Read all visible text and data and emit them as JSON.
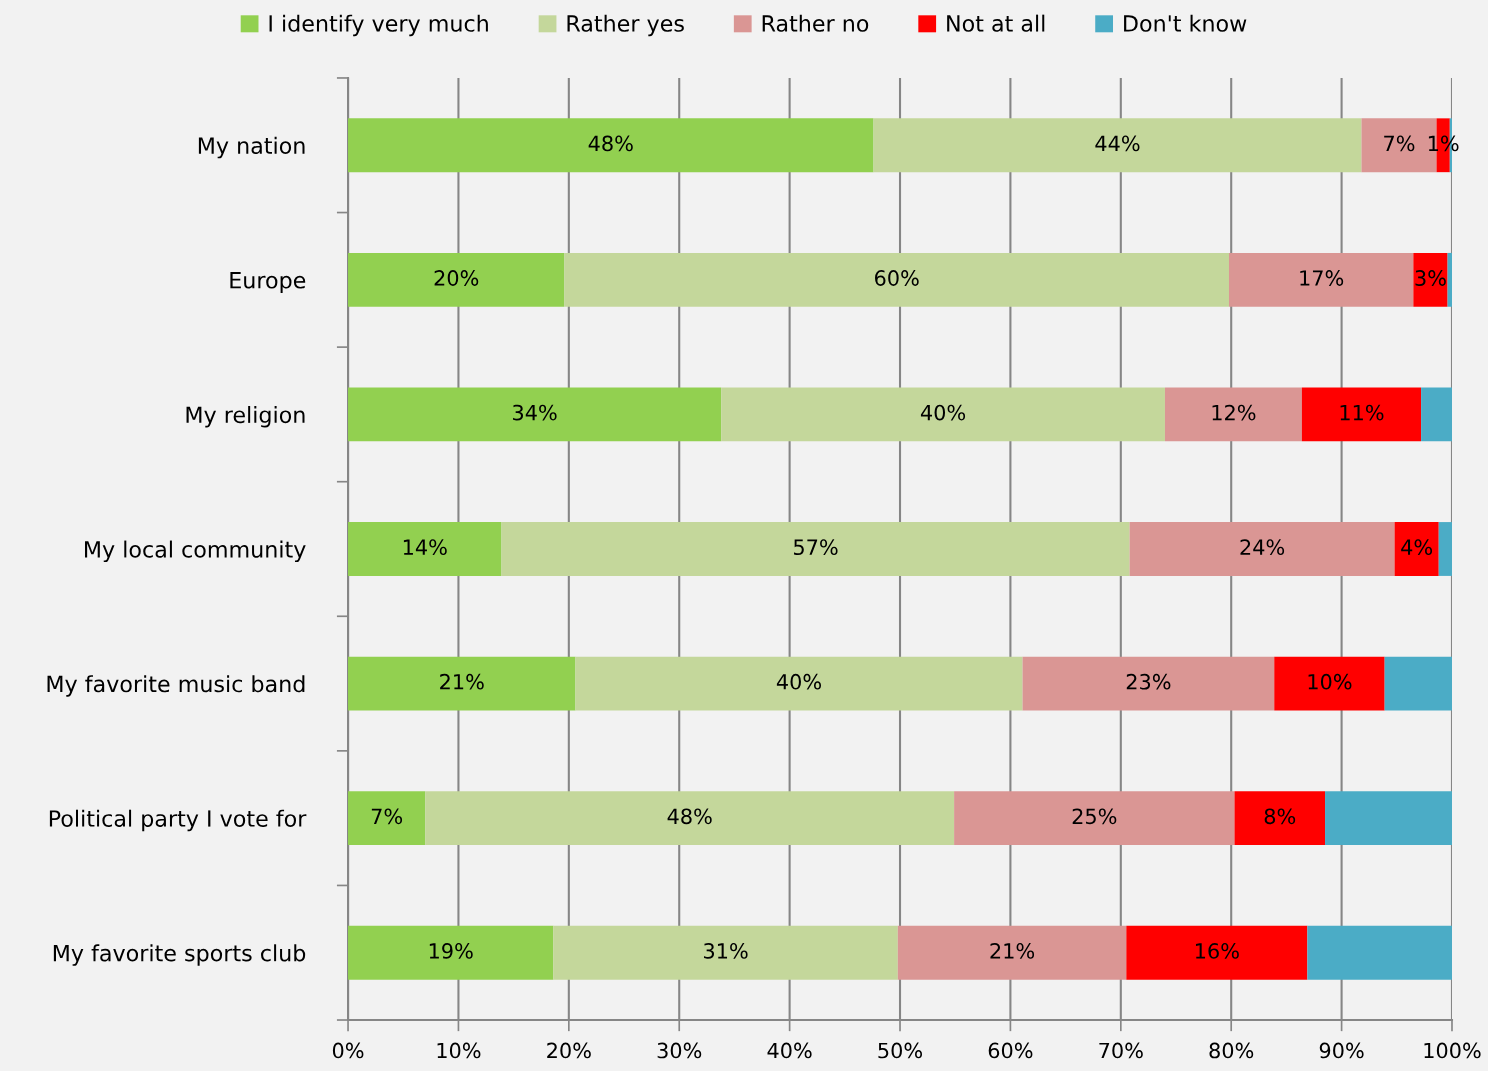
{
  "chart_data": {
    "type": "bar",
    "orientation": "horizontal",
    "stacked": true,
    "categories": [
      "My nation",
      "Europe",
      "My religion",
      "My local community",
      "My favorite music band",
      "Political party I vote for",
      "My favorite sports club"
    ],
    "series": [
      {
        "name": "I identify very much",
        "color": "#92d050",
        "values": [
          47.6,
          19.6,
          33.8,
          13.9,
          20.6,
          7.0,
          18.6
        ],
        "value_labels": [
          "48%",
          "20%",
          "34%",
          "14%",
          "21%",
          "7%",
          "19%"
        ]
      },
      {
        "name": "Rather yes",
        "color": "#c4d79b",
        "values": [
          44.2,
          60.2,
          40.2,
          56.9,
          40.5,
          47.9,
          31.2
        ],
        "value_labels": [
          "44%",
          "60%",
          "40%",
          "57%",
          "40%",
          "48%",
          "31%"
        ]
      },
      {
        "name": "Rather no",
        "color": "#da9694",
        "values": [
          6.8,
          16.7,
          12.4,
          24.0,
          22.8,
          25.4,
          20.7
        ],
        "value_labels": [
          "7%",
          "17%",
          "12%",
          "24%",
          "23%",
          "25%",
          "21%"
        ]
      },
      {
        "name": "Not at all",
        "color": "#ff0000",
        "values": [
          1.2,
          3.1,
          10.8,
          4.0,
          10.0,
          8.2,
          16.4
        ],
        "value_labels": [
          "1%",
          "3%",
          "11%",
          "4%",
          "10%",
          "8%",
          "16%"
        ]
      },
      {
        "name": "Don't know",
        "color": "#4bacc6",
        "values": [
          0.2,
          0.4,
          2.8,
          1.2,
          6.2,
          11.6,
          13.1
        ]
      }
    ],
    "xlim": [
      0,
      100
    ],
    "xticks": [
      {
        "value": 0,
        "label": "0%"
      },
      {
        "value": 10,
        "label": "10%"
      },
      {
        "value": 20,
        "label": "20%"
      },
      {
        "value": 30,
        "label": "30%"
      },
      {
        "value": 40,
        "label": "40%"
      },
      {
        "value": 50,
        "label": "50%"
      },
      {
        "value": 60,
        "label": "60%"
      },
      {
        "value": 70,
        "label": "70%"
      },
      {
        "value": 80,
        "label": "80%"
      },
      {
        "value": 90,
        "label": "90%"
      },
      {
        "value": 100,
        "label": "100%"
      }
    ],
    "grid": "x",
    "legend": "top"
  }
}
